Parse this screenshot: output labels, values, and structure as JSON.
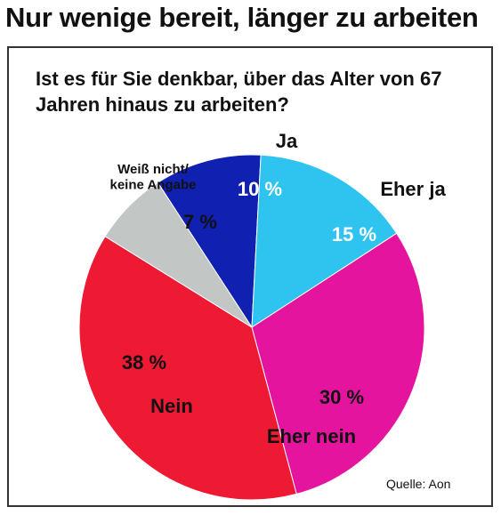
{
  "header": {
    "title": "Nur wenige bereit, länger zu arbeiten"
  },
  "chart_data": {
    "type": "pie",
    "title": "Ist es für Sie denkbar, über das Alter von 67 Jahren hinaus zu arbeiten?",
    "slices": [
      {
        "label": "Ja",
        "value": 10,
        "value_label": "10 %",
        "color": "#1020b0",
        "text_color": "#ffffff"
      },
      {
        "label": "Eher ja",
        "value": 15,
        "value_label": "15 %",
        "color": "#2ec4ef",
        "text_color": "#ffffff"
      },
      {
        "label": "Eher nein",
        "value": 30,
        "value_label": "30 %",
        "color": "#e5149e",
        "text_color": "#111111"
      },
      {
        "label": "Nein",
        "value": 38,
        "value_label": "38 %",
        "color": "#ee1a34",
        "text_color": "#111111"
      },
      {
        "label": "Weiß nicht/ keine Angabe",
        "label_lines": [
          "Weiß nicht/",
          "keine Angabe"
        ],
        "value": 7,
        "value_label": "7 %",
        "color": "#c2c6c4",
        "text_color": "#111111"
      }
    ]
  },
  "footer": {
    "source": "Quelle: Aon"
  }
}
